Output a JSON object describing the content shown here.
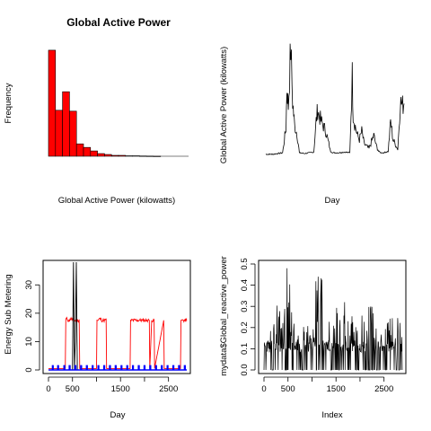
{
  "chart_data": [
    {
      "type": "bar",
      "title": "Global Active Power",
      "xlabel": "Global Active Power (kilowatts)",
      "ylabel": "Frequency",
      "bar_color": "#ff0000",
      "xlim": [
        0,
        10
      ],
      "x_axis_drawn": false,
      "y_axis_drawn": false,
      "bins": [
        {
          "x0": 0.0,
          "x1": 0.5,
          "count": 120
        },
        {
          "x0": 0.5,
          "x1": 1.0,
          "count": 52
        },
        {
          "x0": 1.0,
          "x1": 1.5,
          "count": 73
        },
        {
          "x0": 1.5,
          "x1": 2.0,
          "count": 51
        },
        {
          "x0": 2.0,
          "x1": 2.5,
          "count": 14
        },
        {
          "x0": 2.5,
          "x1": 3.0,
          "count": 10
        },
        {
          "x0": 3.0,
          "x1": 3.5,
          "count": 6
        },
        {
          "x0": 3.5,
          "x1": 4.0,
          "count": 3
        },
        {
          "x0": 4.0,
          "x1": 4.5,
          "count": 2
        },
        {
          "x0": 4.5,
          "x1": 5.0,
          "count": 1
        },
        {
          "x0": 5.0,
          "x1": 5.5,
          "count": 1
        },
        {
          "x0": 5.5,
          "x1": 6.0,
          "count": 0.5
        },
        {
          "x0": 6.0,
          "x1": 6.5,
          "count": 0.5
        },
        {
          "x0": 6.5,
          "x1": 7.0,
          "count": 0.3
        },
        {
          "x0": 7.0,
          "x1": 7.5,
          "count": 0.2
        },
        {
          "x0": 7.5,
          "x1": 8.0,
          "count": 0.1
        }
      ],
      "ylim": [
        0,
        125
      ]
    },
    {
      "type": "line",
      "title": "",
      "xlabel": "Day",
      "ylabel": "Global Active Power (kilowatts)",
      "line_color": "#000000",
      "x_axis_drawn": false,
      "y_axis_drawn": false,
      "xlim": [
        0,
        2880
      ],
      "ylim": [
        0,
        8
      ],
      "x": [
        0,
        150,
        250,
        350,
        420,
        440,
        470,
        520,
        560,
        580,
        600,
        650,
        700,
        800,
        900,
        1000,
        1050,
        1080,
        1100,
        1150,
        1250,
        1350,
        1400,
        1500,
        1650,
        1750,
        1800,
        1820,
        1840,
        1900,
        1950,
        2000,
        2050,
        2150,
        2250,
        2300,
        2350,
        2400,
        2450,
        2500,
        2550,
        2600,
        2650,
        2700,
        2750,
        2800,
        2850,
        2880
      ],
      "y": [
        0.2,
        0.2,
        0.25,
        0.3,
        2.0,
        4.8,
        3.5,
        7.6,
        3.8,
        3.0,
        2.2,
        1.6,
        0.3,
        0.25,
        0.3,
        0.35,
        2.5,
        3.3,
        3.0,
        2.5,
        1.8,
        0.4,
        0.3,
        0.3,
        0.35,
        0.3,
        5.6,
        3.0,
        2.5,
        1.6,
        1.2,
        1.8,
        0.9,
        0.6,
        1.5,
        0.8,
        0.4,
        0.3,
        0.3,
        0.35,
        0.4,
        2.5,
        1.2,
        0.9,
        0.5,
        3.8,
        3.6,
        3.7
      ]
    },
    {
      "type": "line",
      "title": "",
      "xlabel": "Day",
      "ylabel": "Energy Sub Metering",
      "xlim": [
        0,
        2880
      ],
      "ylim": [
        0,
        38
      ],
      "x_ticks": [
        0,
        500,
        1500,
        2500
      ],
      "x_ticks_unlabeled": [
        1000,
        2000
      ],
      "y_ticks": [
        0,
        10,
        20,
        30
      ],
      "series": [
        {
          "color": "#000000",
          "x": [
            0,
            400,
            500,
            520,
            540,
            560,
            580,
            600,
            620,
            2880
          ],
          "y": [
            0,
            0,
            0,
            38,
            0,
            10,
            38,
            0,
            0,
            0
          ]
        },
        {
          "color": "#ff0000",
          "x": [
            0,
            350,
            360,
            400,
            450,
            500,
            640,
            650,
            1000,
            1010,
            1050,
            1100,
            1150,
            1200,
            1210,
            1700,
            1710,
            1900,
            1950,
            2000,
            2050,
            2100,
            2110,
            2150,
            2200,
            2210,
            2400,
            2410,
            2500,
            2510,
            2600,
            2700,
            2750,
            2760,
            2800,
            2880
          ],
          "y": [
            0.5,
            0.5,
            18,
            17.5,
            18,
            17.5,
            17.5,
            0.5,
            0.5,
            17.5,
            18,
            17.5,
            17.5,
            18,
            0.5,
            0.5,
            17.5,
            17.5,
            17.5,
            17.5,
            17.5,
            17.5,
            0.5,
            17.5,
            17.5,
            0.5,
            17.5,
            0.5,
            0.5,
            0.5,
            0.5,
            0.5,
            0.5,
            17.5,
            17.5,
            17.5
          ]
        },
        {
          "color": "#0000ff",
          "spikes": [
            90,
            200,
            330,
            440,
            560,
            680,
            800,
            920,
            1040,
            1160,
            1280,
            1400,
            1520,
            1640,
            1760,
            1880,
            2000,
            2120,
            2240,
            2360,
            2480,
            2600,
            2720,
            2840
          ],
          "base": 0,
          "peak": 1.5
        }
      ]
    },
    {
      "type": "line",
      "title": "",
      "xlabel": "Index",
      "ylabel": "mydata$Global_reactive_power",
      "line_color": "#000000",
      "xlim": [
        0,
        2880
      ],
      "ylim": [
        0,
        0.5
      ],
      "x_ticks": [
        0,
        500,
        1500,
        2500
      ],
      "x_ticks_unlabeled": [
        1000,
        2000
      ],
      "y_ticks": [
        0.0,
        0.1,
        0.2,
        0.3,
        0.4,
        0.5
      ],
      "y_tick_labels": [
        "0.0",
        "0.1",
        "0.2",
        "0.3",
        "0.4",
        "0.5"
      ],
      "envelope": [
        0.14,
        0.22,
        0.26,
        0.32,
        0.3,
        0.5,
        0.28,
        0.25,
        0.3,
        0.26,
        0.24,
        0.22,
        0.45,
        0.5,
        0.42,
        0.36,
        0.3,
        0.28,
        0.32,
        0.3,
        0.26,
        0.25,
        0.3,
        0.28,
        0.35,
        0.3,
        0.26,
        0.28,
        0.3,
        0.26,
        0.26,
        0.24
      ]
    }
  ],
  "x_tick_labels": [
    "0",
    "500",
    "1500",
    "2500"
  ],
  "y_tick_labels_sub": [
    "0",
    "10",
    "20",
    "30"
  ]
}
